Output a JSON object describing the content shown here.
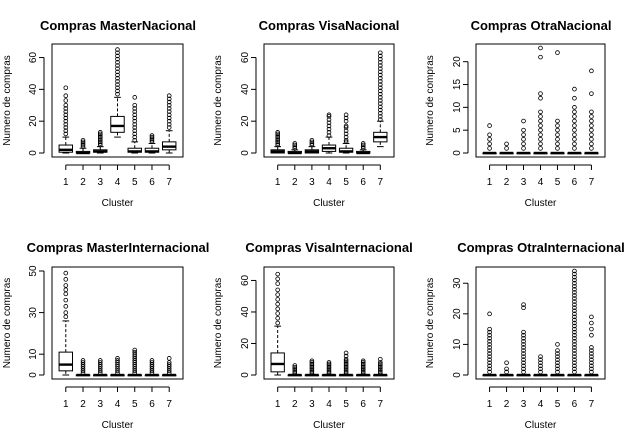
{
  "chart_data": [
    {
      "type": "box",
      "title": "Compras MasterNacional",
      "xlabel": "Cluster",
      "ylabel": "Numero de compras",
      "categories": [
        "1",
        "2",
        "3",
        "4",
        "5",
        "6",
        "7"
      ],
      "yticks": [
        0,
        20,
        40,
        60
      ],
      "ylim": [
        0,
        66
      ],
      "boxes": [
        {
          "lw": 0,
          "q1": 0.5,
          "median": 2,
          "q3": 5,
          "uw": 10,
          "outliers": [
            12,
            14,
            16,
            18,
            20,
            22,
            24,
            26,
            28,
            30,
            33,
            36,
            41
          ]
        },
        {
          "lw": 0,
          "q1": 0,
          "median": 0,
          "q3": 1,
          "uw": 3,
          "outliers": [
            4,
            5,
            6,
            7,
            8
          ]
        },
        {
          "lw": 0,
          "q1": 0.5,
          "median": 1,
          "q3": 2,
          "uw": 4,
          "outliers": [
            5,
            6,
            7,
            8,
            9,
            10,
            11,
            12,
            13
          ]
        },
        {
          "lw": 10,
          "q1": 13,
          "median": 17,
          "q3": 23,
          "uw": 35,
          "outliers": [
            37,
            39,
            41,
            43,
            45,
            47,
            49,
            51,
            53,
            55,
            57,
            59,
            61,
            63,
            65
          ]
        },
        {
          "lw": 0,
          "q1": 0.5,
          "median": 1,
          "q3": 3,
          "uw": 7,
          "outliers": [
            8,
            10,
            12,
            14,
            16,
            18,
            20,
            22,
            24,
            26,
            28,
            30,
            35
          ]
        },
        {
          "lw": 0,
          "q1": 0.5,
          "median": 1,
          "q3": 3,
          "uw": 6,
          "outliers": [
            7,
            8,
            9,
            10,
            11
          ]
        },
        {
          "lw": 0,
          "q1": 2,
          "median": 4,
          "q3": 7,
          "uw": 14,
          "outliers": [
            16,
            18,
            20,
            22,
            24,
            26,
            28,
            30,
            32,
            34,
            36
          ]
        }
      ]
    },
    {
      "type": "box",
      "title": "Compras VisaNacional",
      "xlabel": "Cluster",
      "ylabel": "Numero de compras",
      "categories": [
        "1",
        "2",
        "3",
        "4",
        "5",
        "6",
        "7"
      ],
      "yticks": [
        0,
        20,
        40,
        60
      ],
      "ylim": [
        0,
        66
      ],
      "boxes": [
        {
          "lw": 0,
          "q1": 0,
          "median": 1,
          "q3": 2,
          "uw": 4,
          "outliers": [
            5,
            6,
            7,
            8,
            9,
            10,
            11,
            12,
            13
          ]
        },
        {
          "lw": 0,
          "q1": 0,
          "median": 0,
          "q3": 1,
          "uw": 2,
          "outliers": [
            3,
            4,
            5,
            6
          ]
        },
        {
          "lw": 0,
          "q1": 0,
          "median": 1,
          "q3": 2,
          "uw": 4,
          "outliers": [
            5,
            6,
            7,
            8
          ]
        },
        {
          "lw": 0,
          "q1": 1,
          "median": 3,
          "q3": 5,
          "uw": 10,
          "outliers": [
            11,
            13,
            15,
            17,
            19,
            21,
            23,
            24
          ]
        },
        {
          "lw": 0,
          "q1": 0.5,
          "median": 1,
          "q3": 3,
          "uw": 6,
          "outliers": [
            7,
            8,
            10,
            12,
            14,
            16,
            17,
            20,
            22,
            24
          ]
        },
        {
          "lw": 0,
          "q1": 0,
          "median": 0,
          "q3": 1,
          "uw": 2,
          "outliers": [
            3,
            4,
            5,
            6
          ]
        },
        {
          "lw": 4,
          "q1": 7,
          "median": 10,
          "q3": 13,
          "uw": 20,
          "outliers": [
            21,
            23,
            25,
            27,
            29,
            31,
            33,
            35,
            37,
            39,
            41,
            43,
            45,
            47,
            49,
            51,
            53,
            55,
            57,
            59,
            61,
            63
          ]
        }
      ]
    },
    {
      "type": "box",
      "title": "Compras OtraNacional",
      "xlabel": "Cluster",
      "ylabel": "Numero de compras",
      "categories": [
        "1",
        "2",
        "3",
        "4",
        "5",
        "6",
        "7"
      ],
      "yticks": [
        0,
        5,
        10,
        15,
        20
      ],
      "ylim": [
        0,
        23
      ],
      "boxes": [
        {
          "lw": 0,
          "q1": 0,
          "median": 0,
          "q3": 0,
          "uw": 0,
          "outliers": [
            1,
            2,
            3,
            4,
            6
          ]
        },
        {
          "lw": 0,
          "q1": 0,
          "median": 0,
          "q3": 0,
          "uw": 0,
          "outliers": [
            1,
            2
          ]
        },
        {
          "lw": 0,
          "q1": 0,
          "median": 0,
          "q3": 0,
          "uw": 0,
          "outliers": [
            1,
            2,
            3,
            4,
            5,
            7
          ]
        },
        {
          "lw": 0,
          "q1": 0,
          "median": 0,
          "q3": 0,
          "uw": 0,
          "outliers": [
            1,
            2,
            3,
            4,
            5,
            6,
            7,
            8,
            9,
            12,
            13,
            21,
            23
          ]
        },
        {
          "lw": 0,
          "q1": 0,
          "median": 0,
          "q3": 0,
          "uw": 0,
          "outliers": [
            1,
            2,
            3,
            4,
            5,
            6,
            7,
            22
          ]
        },
        {
          "lw": 0,
          "q1": 0,
          "median": 0,
          "q3": 0,
          "uw": 0,
          "outliers": [
            1,
            2,
            3,
            4,
            5,
            6,
            7,
            8,
            9,
            10,
            12,
            14
          ]
        },
        {
          "lw": 0,
          "q1": 0,
          "median": 0,
          "q3": 0,
          "uw": 0,
          "outliers": [
            1,
            2,
            3,
            4,
            5,
            6,
            7,
            8,
            9,
            13,
            18
          ]
        }
      ]
    },
    {
      "type": "box",
      "title": "Compras MasterInternacional",
      "xlabel": "Cluster",
      "ylabel": "Numero de compras",
      "categories": [
        "1",
        "2",
        "3",
        "4",
        "5",
        "6",
        "7"
      ],
      "yticks": [
        0,
        10,
        30,
        50
      ],
      "ylim": [
        0,
        50
      ],
      "boxes": [
        {
          "lw": 0,
          "q1": 2,
          "median": 5,
          "q3": 11,
          "uw": 26,
          "outliers": [
            28,
            30,
            33,
            36,
            39,
            41,
            43,
            46,
            49
          ]
        },
        {
          "lw": 0,
          "q1": 0,
          "median": 0,
          "q3": 0,
          "uw": 0,
          "outliers": [
            1,
            2,
            3,
            4,
            5,
            6,
            7
          ]
        },
        {
          "lw": 0,
          "q1": 0,
          "median": 0,
          "q3": 0,
          "uw": 0,
          "outliers": [
            1,
            2,
            3,
            4,
            5,
            6,
            7
          ]
        },
        {
          "lw": 0,
          "q1": 0,
          "median": 0,
          "q3": 0,
          "uw": 0,
          "outliers": [
            1,
            2,
            3,
            4,
            5,
            6,
            7,
            8
          ]
        },
        {
          "lw": 0,
          "q1": 0,
          "median": 0,
          "q3": 0,
          "uw": 0,
          "outliers": [
            1,
            2,
            3,
            4,
            5,
            6,
            7,
            8,
            9,
            10,
            11,
            12
          ]
        },
        {
          "lw": 0,
          "q1": 0,
          "median": 0,
          "q3": 0,
          "uw": 0,
          "outliers": [
            1,
            2,
            3,
            4,
            5,
            6,
            7
          ]
        },
        {
          "lw": 0,
          "q1": 0,
          "median": 0,
          "q3": 0,
          "uw": 0,
          "outliers": [
            1,
            2,
            3,
            4,
            5,
            6,
            8
          ]
        }
      ]
    },
    {
      "type": "box",
      "title": "Compras VisaInternacional",
      "xlabel": "Cluster",
      "ylabel": "Numero de compras",
      "categories": [
        "1",
        "2",
        "3",
        "4",
        "5",
        "6",
        "7"
      ],
      "yticks": [
        0,
        20,
        40,
        60
      ],
      "ylim": [
        0,
        66
      ],
      "boxes": [
        {
          "lw": 0,
          "q1": 2,
          "median": 7,
          "q3": 14,
          "uw": 31,
          "outliers": [
            33,
            36,
            39,
            42,
            45,
            48,
            51,
            54,
            58,
            61,
            64
          ]
        },
        {
          "lw": 0,
          "q1": 0,
          "median": 0,
          "q3": 0,
          "uw": 0,
          "outliers": [
            1,
            2,
            3,
            4,
            5,
            6
          ]
        },
        {
          "lw": 0,
          "q1": 0,
          "median": 0,
          "q3": 0,
          "uw": 0,
          "outliers": [
            1,
            2,
            3,
            4,
            5,
            6,
            7,
            8,
            9
          ]
        },
        {
          "lw": 0,
          "q1": 0,
          "median": 0,
          "q3": 0,
          "uw": 0,
          "outliers": [
            1,
            2,
            3,
            4,
            5,
            6,
            7,
            8
          ]
        },
        {
          "lw": 0,
          "q1": 0,
          "median": 0,
          "q3": 0,
          "uw": 0,
          "outliers": [
            1,
            2,
            3,
            4,
            5,
            6,
            7,
            8,
            9,
            10,
            12,
            14
          ]
        },
        {
          "lw": 0,
          "q1": 0,
          "median": 0,
          "q3": 0,
          "uw": 0,
          "outliers": [
            1,
            2,
            3,
            4,
            5,
            6,
            7,
            8,
            9
          ]
        },
        {
          "lw": 0,
          "q1": 0,
          "median": 0,
          "q3": 0,
          "uw": 0,
          "outliers": [
            1,
            2,
            3,
            4,
            5,
            6,
            7,
            8,
            10
          ]
        }
      ]
    },
    {
      "type": "box",
      "title": "Compras OtraInternacional",
      "xlabel": "Cluster",
      "ylabel": "Numero de compras",
      "categories": [
        "1",
        "2",
        "3",
        "4",
        "5",
        "6",
        "7"
      ],
      "yticks": [
        0,
        10,
        20,
        30
      ],
      "ylim": [
        0,
        34
      ],
      "boxes": [
        {
          "lw": 0,
          "q1": 0,
          "median": 0,
          "q3": 0,
          "uw": 0,
          "outliers": [
            1,
            2,
            3,
            4,
            5,
            6,
            7,
            8,
            9,
            10,
            11,
            12,
            13,
            14,
            15,
            20
          ]
        },
        {
          "lw": 0,
          "q1": 0,
          "median": 0,
          "q3": 0,
          "uw": 0,
          "outliers": [
            1,
            2,
            4
          ]
        },
        {
          "lw": 0,
          "q1": 0,
          "median": 0,
          "q3": 0,
          "uw": 0,
          "outliers": [
            1,
            2,
            3,
            4,
            5,
            6,
            7,
            8,
            9,
            10,
            11,
            12,
            13,
            14,
            22,
            23
          ]
        },
        {
          "lw": 0,
          "q1": 0,
          "median": 0,
          "q3": 0,
          "uw": 0,
          "outliers": [
            1,
            2,
            3,
            4,
            5,
            6
          ]
        },
        {
          "lw": 0,
          "q1": 0,
          "median": 0,
          "q3": 0,
          "uw": 0,
          "outliers": [
            1,
            2,
            3,
            4,
            5,
            6,
            7,
            8,
            10
          ]
        },
        {
          "lw": 0,
          "q1": 0,
          "median": 0,
          "q3": 0,
          "uw": 0,
          "outliers": [
            1,
            2,
            3,
            4,
            5,
            6,
            7,
            8,
            9,
            10,
            11,
            12,
            13,
            14,
            15,
            16,
            17,
            18,
            19,
            20,
            21,
            22,
            23,
            24,
            25,
            26,
            27,
            28,
            29,
            30,
            31,
            32,
            33,
            34
          ]
        },
        {
          "lw": 0,
          "q1": 0,
          "median": 0,
          "q3": 0,
          "uw": 0,
          "outliers": [
            1,
            2,
            3,
            4,
            5,
            6,
            7,
            8,
            9,
            13,
            15,
            17,
            19
          ]
        }
      ]
    }
  ]
}
